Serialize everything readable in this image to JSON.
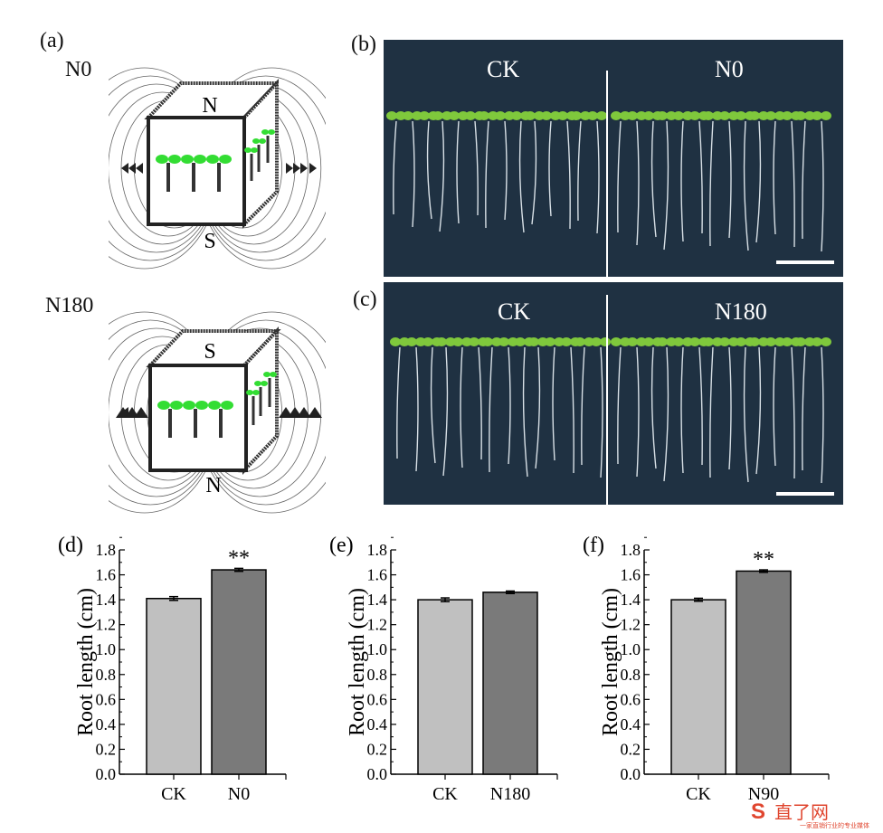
{
  "panels": {
    "a": {
      "label": "(a)",
      "diagrams": [
        {
          "condition": "N0",
          "top_pole": "N",
          "bottom_pole": "S"
        },
        {
          "condition": "N180",
          "top_pole": "S",
          "bottom_pole": "N"
        }
      ]
    },
    "b": {
      "label": "(b)",
      "left": "CK",
      "right": "N0"
    },
    "c": {
      "label": "(c)",
      "left": "CK",
      "right": "N180"
    }
  },
  "colors": {
    "ck_bar": "#c0c0c0",
    "treat_bar": "#7a7a7a",
    "photo_bg": "#1f3142",
    "seedling": "#7fc83c",
    "leaf_green": "#33dd33"
  },
  "chart_data": [
    {
      "panel": "(d)",
      "type": "bar",
      "categories": [
        "CK",
        "N0"
      ],
      "values": [
        1.41,
        1.64
      ],
      "errors": [
        0.015,
        0.012
      ],
      "significance": [
        "",
        "**"
      ],
      "ylabel": "Root length (cm)",
      "ylim": [
        0.0,
        1.8
      ],
      "yticks": [
        "0.0",
        "0.2",
        "0.4",
        "0.6",
        "0.8",
        "1.0",
        "1.2",
        "1.4",
        "1.6",
        "1.8"
      ]
    },
    {
      "panel": "(e)",
      "type": "bar",
      "categories": [
        "CK",
        "N180"
      ],
      "values": [
        1.4,
        1.46
      ],
      "errors": [
        0.015,
        0.01
      ],
      "significance": [
        "",
        ""
      ],
      "ylabel": "Root length (cm)",
      "ylim": [
        0.0,
        1.8
      ],
      "yticks": [
        "0.0",
        "0.2",
        "0.4",
        "0.6",
        "0.8",
        "1.0",
        "1.2",
        "1.4",
        "1.6",
        "1.8"
      ]
    },
    {
      "panel": "(f)",
      "type": "bar",
      "categories": [
        "CK",
        "N90"
      ],
      "values": [
        1.4,
        1.63
      ],
      "errors": [
        0.012,
        0.01
      ],
      "significance": [
        "",
        "**"
      ],
      "ylabel": "Root length (cm)",
      "ylim": [
        0.0,
        1.8
      ],
      "yticks": [
        "0.0",
        "0.2",
        "0.4",
        "0.6",
        "0.8",
        "1.0",
        "1.2",
        "1.4",
        "1.6",
        "1.8"
      ]
    }
  ],
  "watermark": {
    "title": "直了网",
    "subtitle": "一家直销行业的专业媒体"
  }
}
